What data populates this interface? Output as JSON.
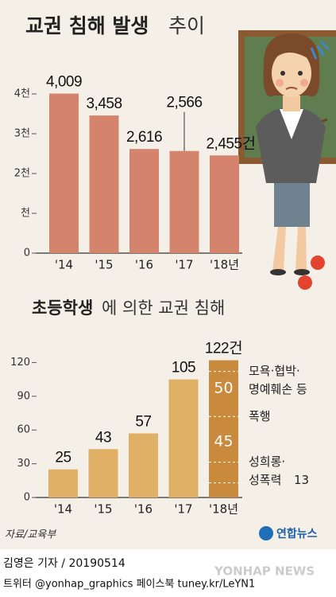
{
  "chart_data": [
    {
      "type": "bar",
      "title": "교권 침해 발생",
      "title_light": "추이",
      "categories": [
        "'14",
        "'15",
        "'16",
        "'17",
        "'18년"
      ],
      "values": [
        4009,
        3458,
        2616,
        2566,
        2455
      ],
      "value_labels": [
        "4,009",
        "3,458",
        "2,616",
        "2,566",
        "2,455건"
      ],
      "color": "#d4846d",
      "ylim": [
        0,
        4400
      ],
      "yticks": [
        0,
        {
          "value": 1000,
          "label": "천"
        },
        {
          "value": 2000,
          "label": "2천"
        },
        {
          "value": 3000,
          "label": "3천"
        },
        {
          "value": 4000,
          "label": "4천"
        }
      ]
    },
    {
      "type": "bar",
      "title": "초등학생",
      "title_light": "에 의한 교권 침해",
      "categories": [
        "'14",
        "'15",
        "'16",
        "'17",
        "'18년"
      ],
      "values": [
        25,
        43,
        57,
        105,
        122
      ],
      "value_labels": [
        "25",
        "43",
        "57",
        "105",
        "122건"
      ],
      "color": "#e0b066",
      "highlight_color": "#c98a3e",
      "ylim": [
        0,
        138
      ],
      "yticks": [
        0,
        30,
        60,
        90,
        120
      ],
      "segments": [
        {
          "value": 50,
          "label_lines": [
            "모욕·협박·",
            "명예훼손 등"
          ]
        },
        {
          "value": 45,
          "label_lines": [
            "폭행"
          ]
        },
        {
          "value": 13,
          "label_lines": [
            "성희롱·",
            "성폭력"
          ]
        }
      ]
    }
  ],
  "footer": {
    "source": "자료/교육부",
    "logo": "연합뉴스",
    "byline": "김영은 기자 / 20190514",
    "social": "트위터 @yonhap_graphics  페이스북 tuney.kr/LeYN1",
    "watermark": "YONHAP NEWS"
  }
}
